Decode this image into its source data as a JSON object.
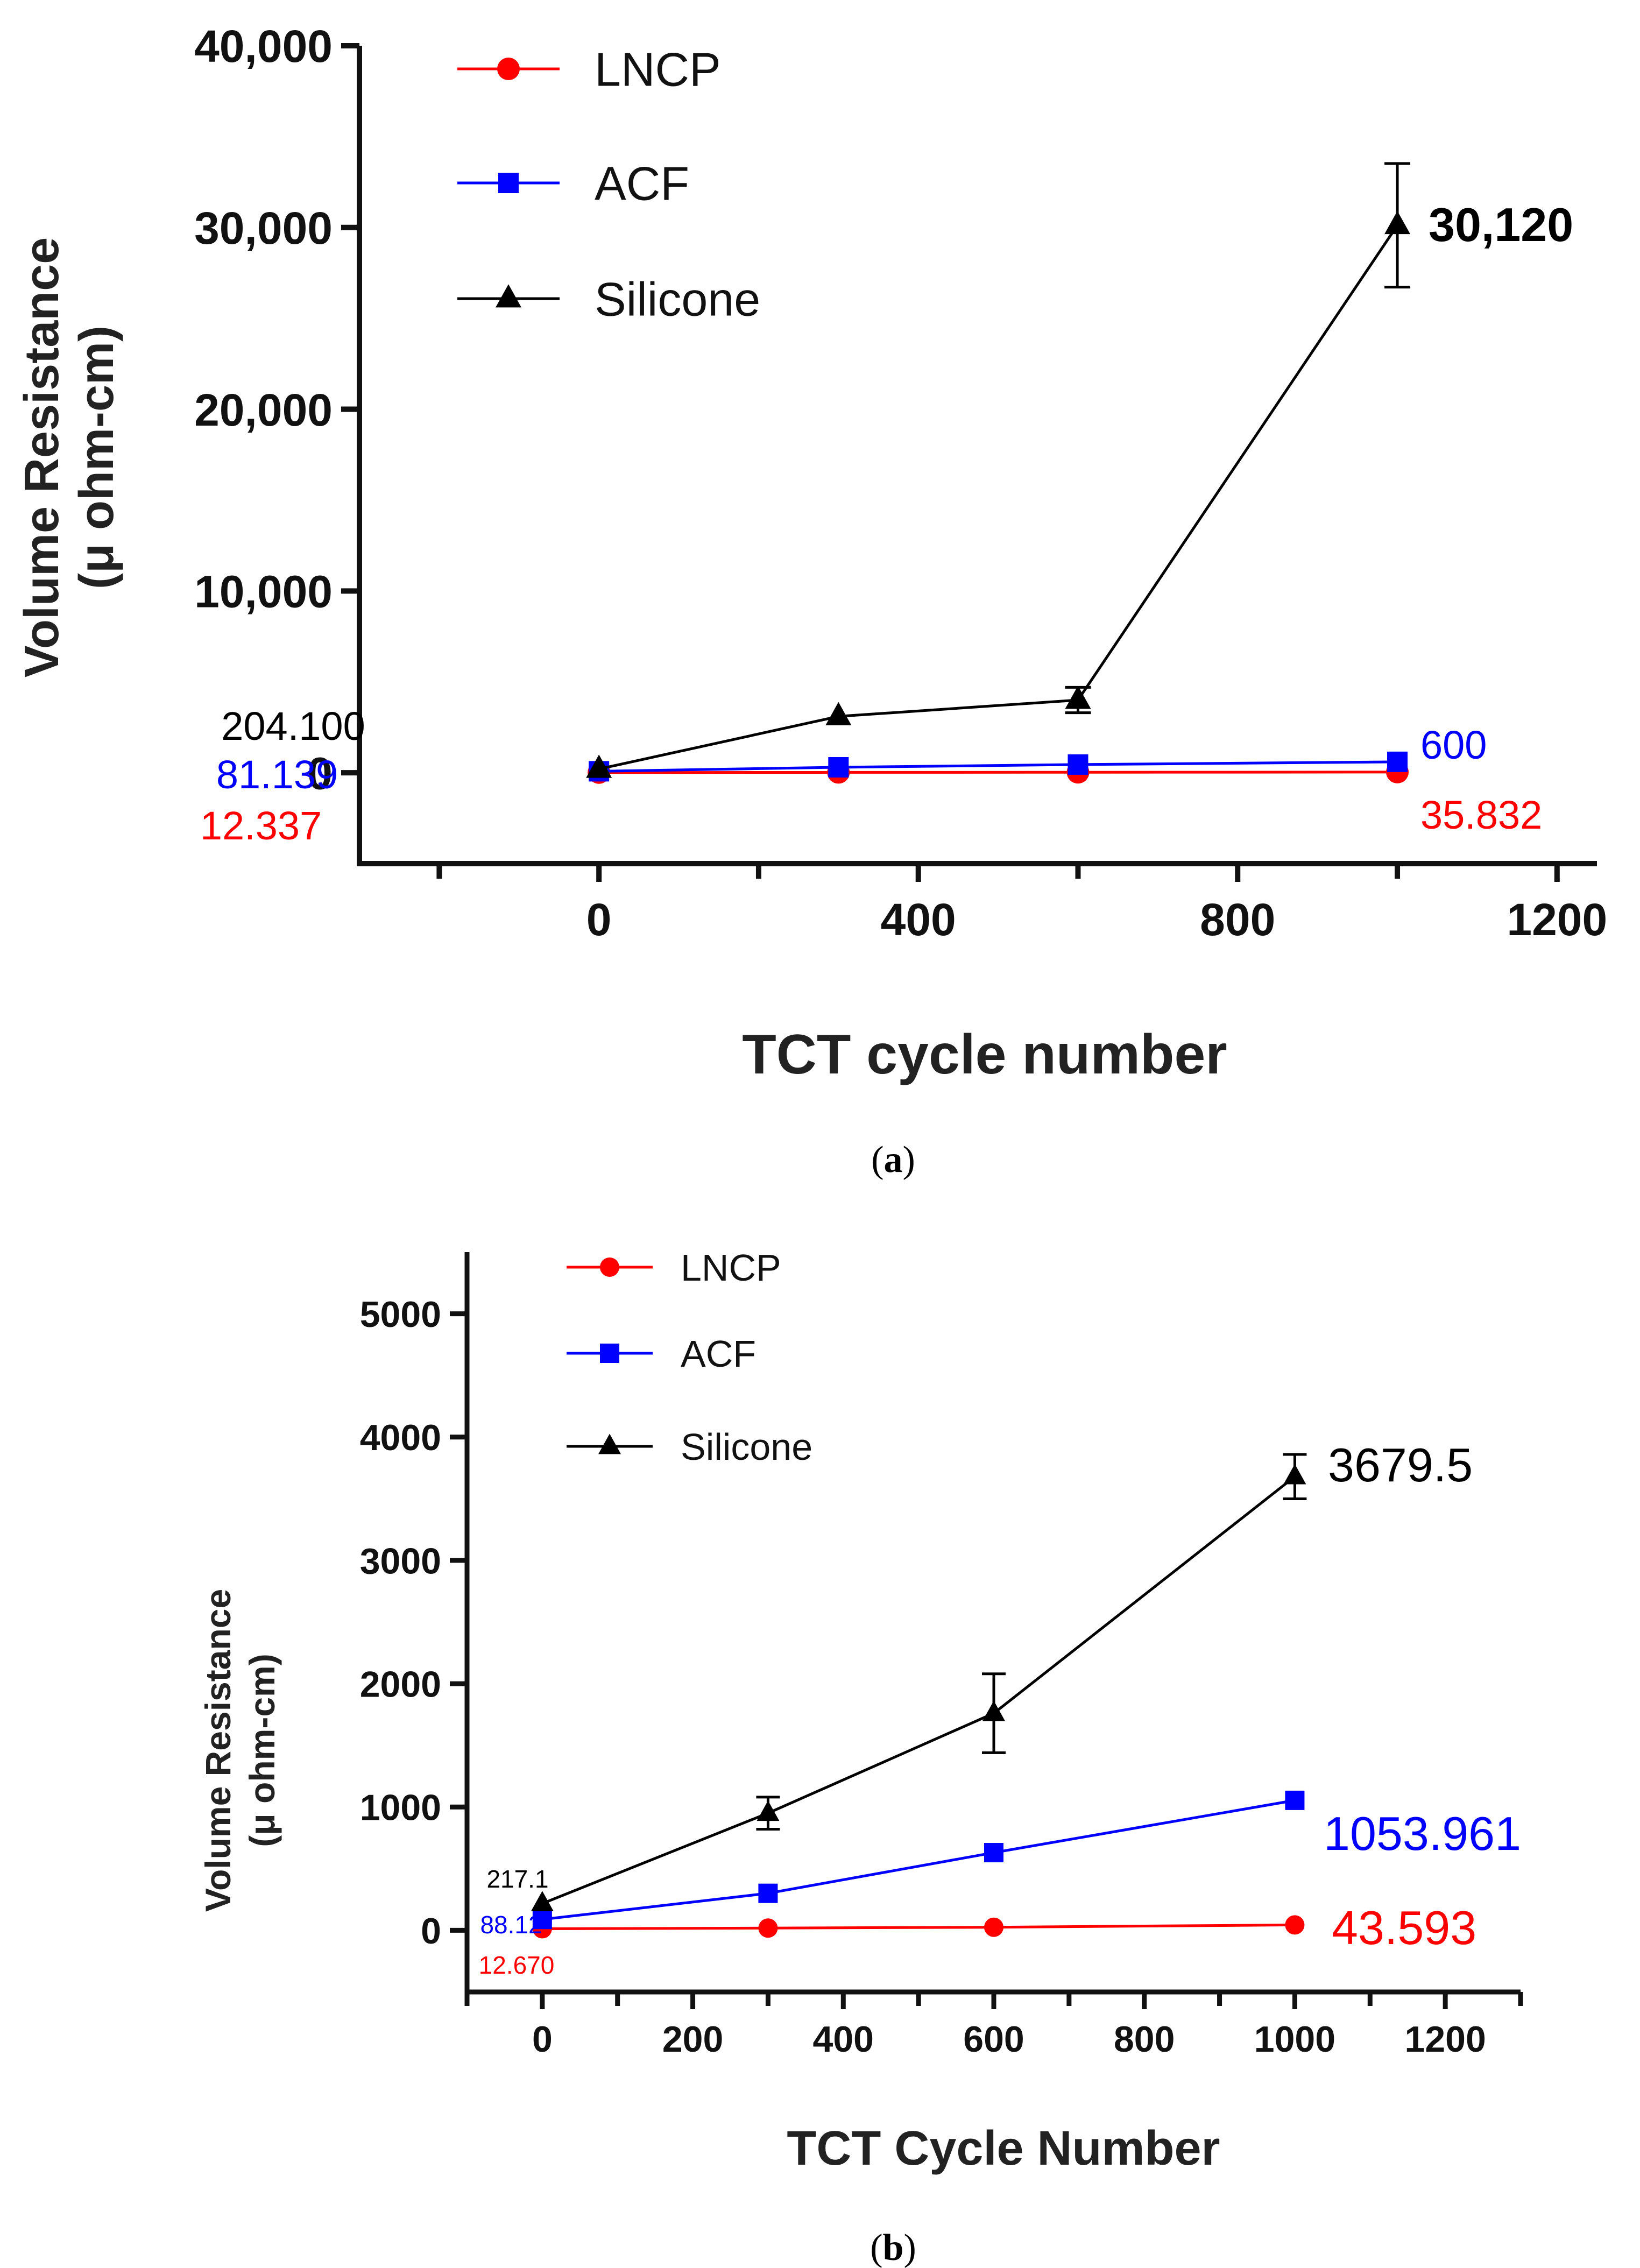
{
  "panels": {
    "a": {
      "caption_open": "(",
      "caption_letter": "a",
      "caption_close": ")"
    },
    "b": {
      "caption_open": "(",
      "caption_letter": "b",
      "caption_close": ")"
    }
  },
  "colors": {
    "LNCP": "#ff0000",
    "ACF": "#0000ff",
    "Silicone": "#000000"
  },
  "chart_data": [
    {
      "id": "a",
      "type": "line",
      "title": "",
      "xlabel": "TCT cycle number",
      "ylabel_line1": "Volume Resistance",
      "ylabel_line2": "(μ ohm-cm)",
      "xlim": [
        -300,
        1250
      ],
      "ylim": [
        -5000,
        40000
      ],
      "xticks": [
        0,
        400,
        800,
        1200
      ],
      "xtick_labels": [
        "0",
        "400",
        "800",
        "1200"
      ],
      "yticks": [
        0,
        10000,
        20000,
        30000,
        40000
      ],
      "ytick_labels": [
        "0",
        "10,000",
        "20,000",
        "30,000",
        "40,000"
      ],
      "legend": [
        "LNCP",
        "ACF",
        "Silicone"
      ],
      "legend_position": "top-left",
      "series": [
        {
          "name": "LNCP",
          "marker": "circle",
          "x": [
            0,
            300,
            600,
            1000
          ],
          "y": [
            12.337,
            20,
            25,
            35.832
          ]
        },
        {
          "name": "ACF",
          "marker": "square",
          "x": [
            0,
            300,
            600,
            1000
          ],
          "y": [
            81.139,
            300,
            450,
            600
          ]
        },
        {
          "name": "Silicone",
          "marker": "triangle",
          "x": [
            0,
            300,
            600,
            1000
          ],
          "y": [
            204.1,
            3100,
            4000,
            30120
          ],
          "err": [
            0,
            0,
            700,
            3400
          ]
        }
      ],
      "annotations": [
        {
          "text": "204.100",
          "series": "Silicone",
          "x": 0,
          "y": 204.1
        },
        {
          "text": "81.139",
          "series": "ACF",
          "x": 0,
          "y": 81.139
        },
        {
          "text": "12.337",
          "series": "LNCP",
          "x": 0,
          "y": 12.337
        },
        {
          "text": "600",
          "series": "ACF",
          "x": 1000,
          "y": 600
        },
        {
          "text": "35.832",
          "series": "LNCP",
          "x": 1000,
          "y": 35.832
        },
        {
          "text": "30,120",
          "series": "Silicone",
          "x": 1000,
          "y": 30120
        }
      ]
    },
    {
      "id": "b",
      "type": "line",
      "title": "",
      "xlabel": "TCT Cycle Number",
      "ylabel_line1": "Volume Resistance",
      "ylabel_line2": "(μ ohm-cm)",
      "xlim": [
        -100,
        1300
      ],
      "ylim": [
        -500,
        5500
      ],
      "xticks": [
        0,
        200,
        400,
        600,
        800,
        1000,
        1200
      ],
      "xtick_labels": [
        "0",
        "200",
        "400",
        "600",
        "800",
        "1000",
        "1200"
      ],
      "yticks": [
        0,
        1000,
        2000,
        3000,
        4000,
        5000
      ],
      "ytick_labels": [
        "0",
        "1000",
        "2000",
        "3000",
        "4000",
        "5000"
      ],
      "legend": [
        "LNCP",
        "ACF",
        "Silicone"
      ],
      "legend_position": "top-left",
      "series": [
        {
          "name": "LNCP",
          "marker": "circle",
          "x": [
            0,
            300,
            600,
            1000
          ],
          "y": [
            12.67,
            18,
            25,
            43.593
          ]
        },
        {
          "name": "ACF",
          "marker": "square",
          "x": [
            0,
            300,
            600,
            1000
          ],
          "y": [
            88.12,
            300,
            630,
            1053.961
          ]
        },
        {
          "name": "Silicone",
          "marker": "triangle",
          "x": [
            0,
            300,
            600,
            1000
          ],
          "y": [
            217.1,
            950,
            1760,
            3679.5
          ],
          "err": [
            0,
            130,
            320,
            180
          ]
        }
      ],
      "annotations": [
        {
          "text": "217.1",
          "series": "Silicone",
          "x": 0,
          "y": 217.1
        },
        {
          "text": "88.12",
          "series": "ACF",
          "x": 0,
          "y": 88.12
        },
        {
          "text": "12.670",
          "series": "LNCP",
          "x": 0,
          "y": 12.67
        },
        {
          "text": "3679.5",
          "series": "Silicone",
          "x": 1000,
          "y": 3679.5
        },
        {
          "text": "1053.961",
          "series": "ACF",
          "x": 1000,
          "y": 1053.961
        },
        {
          "text": "43.593",
          "series": "LNCP",
          "x": 1000,
          "y": 43.593
        }
      ]
    }
  ]
}
